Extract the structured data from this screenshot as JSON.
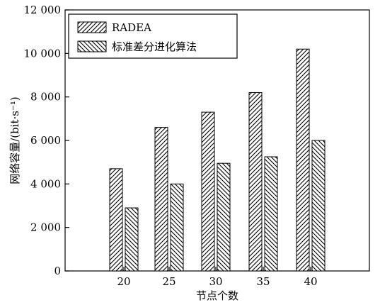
{
  "chart_data": {
    "type": "bar",
    "title": "",
    "xlabel": "节点个数",
    "ylabel": "网络容量/(bit·s⁻¹)",
    "categories": [
      "20",
      "25",
      "30",
      "35",
      "40"
    ],
    "series": [
      {
        "name": "RADEA",
        "values": [
          4700,
          6600,
          7300,
          8200,
          10200
        ],
        "hatch": "forward"
      },
      {
        "name": "标准差分进化算法",
        "values": [
          2900,
          4000,
          4950,
          5250,
          6000
        ],
        "hatch": "backward"
      }
    ],
    "ylim": [
      0,
      12000
    ],
    "yticks": [
      0,
      2000,
      4000,
      6000,
      8000,
      10000,
      12000
    ],
    "ytick_labels": [
      "0",
      "2 000",
      "4 000",
      "6 000",
      "8 000",
      "10 000",
      "12 000"
    ],
    "grid": false,
    "legend_position": "top-left"
  }
}
